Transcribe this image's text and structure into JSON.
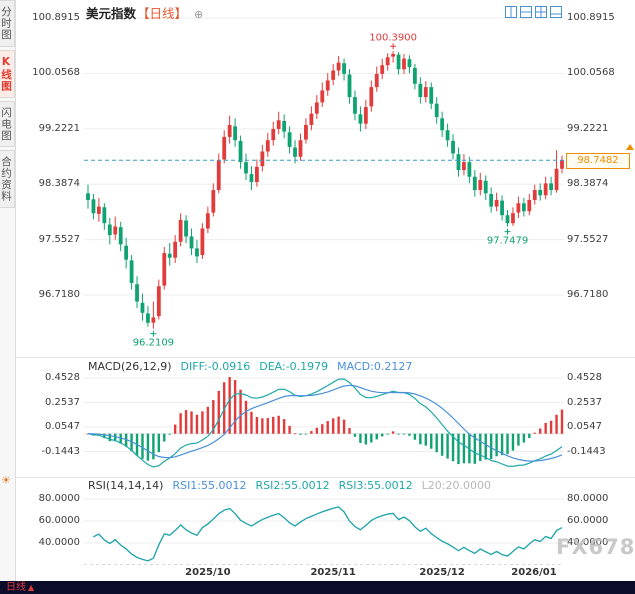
{
  "sidebar": {
    "tabs": [
      {
        "label": "分时图",
        "active": false
      },
      {
        "label": "K线图",
        "active": true
      },
      {
        "label": "闪电图",
        "active": false
      },
      {
        "label": "合约资料",
        "active": false
      }
    ],
    "settings_icon": "☀"
  },
  "header": {
    "title": "美元指数",
    "period_tag": "【日线】",
    "plus_icon": "⊕",
    "layout_icons": [
      "layout-2col-icon",
      "layout-2row-icon",
      "layout-4grid-icon",
      "layout-main-sub-icon"
    ]
  },
  "main_chart": {
    "y_axis_labels": [
      "100.8915",
      "100.0568",
      "99.2221",
      "98.3874",
      "97.5527",
      "96.7180"
    ],
    "current_price": "98.7482"
  },
  "macd": {
    "header": {
      "name": "MACD(26,12,9)",
      "diff": "DIFF:-0.0916",
      "dea": "DEA:-0.1979",
      "macd": "MACD:0.2127"
    },
    "y_axis_labels": [
      "0.4528",
      "0.2537",
      "0.0547",
      "-0.1443"
    ]
  },
  "rsi": {
    "header": {
      "name": "RSI(14,14,14)",
      "rsi1": "RSI1:55.0012",
      "rsi2": "RSI2:55.0012",
      "rsi3": "RSI3:55.0012",
      "l20": "L20:20.0000"
    },
    "y_axis_labels": [
      "80.0000",
      "60.0000",
      "40.0000"
    ]
  },
  "x_axis": {
    "month_labels": [
      {
        "label": "2025/10",
        "index": 22
      },
      {
        "label": "2025/11",
        "index": 45
      },
      {
        "label": "2025/12",
        "index": 65
      },
      {
        "label": "2026/01",
        "index": 87
      }
    ]
  },
  "footer": {
    "period_label": "日线",
    "arrow": "▲"
  },
  "watermark": "FX678",
  "colors": {
    "up": "#e23b3b",
    "down": "#0ea371",
    "accent_orange": "#f08c00",
    "teal": "#1fa8a8",
    "blue": "#4a90d9",
    "price_line": "#3a9bce",
    "grid": "#ededed",
    "period_orange": "#e5552c",
    "bottom_bar": "#0b0b2a",
    "watermark_gray": "#c0c0c0"
  },
  "chart_data": {
    "type": "candlestick",
    "symbol": "美元指数",
    "period": "日线",
    "ohlc_format": [
      "date",
      "open",
      "high",
      "low",
      "close"
    ],
    "current_price": 98.7482,
    "ylim": [
      96.0,
      101.15
    ],
    "y_gridlines": [
      100.8915,
      100.0568,
      99.2221,
      98.3874,
      97.5527,
      96.718
    ],
    "annotations": [
      {
        "type": "high",
        "index": 56,
        "text": "100.3900"
      },
      {
        "type": "low",
        "index": 12,
        "text": "96.2109"
      },
      {
        "type": "low",
        "index": 77,
        "text": "97.7479"
      }
    ],
    "indicators": {
      "macd": {
        "params": [
          26,
          12,
          9
        ],
        "diff": -0.0916,
        "dea": -0.1979,
        "macd": 0.2127,
        "y_gridlines": [
          0.4528,
          0.2537,
          0.0547,
          -0.1443
        ]
      },
      "rsi": {
        "params": [
          14,
          14,
          14
        ],
        "rsi1": 55.0012,
        "rsi2": 55.0012,
        "rsi3": 55.0012,
        "l20": 20.0,
        "y_gridlines": [
          80,
          60,
          40
        ]
      }
    },
    "candles": [
      [
        "2025-09-01",
        98.25,
        98.38,
        98.02,
        98.15
      ],
      [
        "2025-09-02",
        98.16,
        98.24,
        97.86,
        97.95
      ],
      [
        "2025-09-03",
        97.94,
        98.18,
        97.82,
        98.05
      ],
      [
        "2025-09-04",
        98.04,
        98.1,
        97.7,
        97.8
      ],
      [
        "2025-09-05",
        97.78,
        97.88,
        97.48,
        97.62
      ],
      [
        "2025-09-08",
        97.63,
        97.9,
        97.55,
        97.75
      ],
      [
        "2025-09-09",
        97.74,
        97.82,
        97.38,
        97.48
      ],
      [
        "2025-09-10",
        97.46,
        97.58,
        97.12,
        97.25
      ],
      [
        "2025-09-11",
        97.24,
        97.32,
        96.8,
        96.9
      ],
      [
        "2025-09-12",
        96.88,
        97.0,
        96.52,
        96.62
      ],
      [
        "2025-09-15",
        96.6,
        96.74,
        96.33,
        96.45
      ],
      [
        "2025-09-16",
        96.44,
        96.55,
        96.24,
        96.3
      ],
      [
        "2025-09-17",
        96.3,
        96.62,
        96.2109,
        96.38
      ],
      [
        "2025-09-18",
        96.4,
        96.95,
        96.35,
        96.85
      ],
      [
        "2025-09-19",
        96.86,
        97.44,
        96.8,
        97.35
      ],
      [
        "2025-09-22",
        97.34,
        97.5,
        97.16,
        97.28
      ],
      [
        "2025-09-23",
        97.28,
        97.62,
        97.2,
        97.52
      ],
      [
        "2025-09-24",
        97.52,
        97.95,
        97.45,
        97.85
      ],
      [
        "2025-09-25",
        97.84,
        97.92,
        97.5,
        97.6
      ],
      [
        "2025-09-26",
        97.6,
        97.72,
        97.32,
        97.42
      ],
      [
        "2025-09-29",
        97.42,
        97.55,
        97.2,
        97.3
      ],
      [
        "2025-09-30",
        97.32,
        97.8,
        97.26,
        97.72
      ],
      [
        "2025-10-01",
        97.72,
        98.05,
        97.65,
        97.95
      ],
      [
        "2025-10-02",
        97.96,
        98.4,
        97.9,
        98.3
      ],
      [
        "2025-10-03",
        98.3,
        98.85,
        98.25,
        98.75
      ],
      [
        "2025-10-06",
        98.76,
        99.2,
        98.7,
        99.1
      ],
      [
        "2025-10-07",
        99.1,
        99.42,
        99.0,
        99.28
      ],
      [
        "2025-10-08",
        99.26,
        99.38,
        98.95,
        99.05
      ],
      [
        "2025-10-09",
        99.04,
        99.12,
        98.62,
        98.72
      ],
      [
        "2025-10-10",
        98.72,
        98.85,
        98.45,
        98.55
      ],
      [
        "2025-10-13",
        98.54,
        98.66,
        98.3,
        98.42
      ],
      [
        "2025-10-14",
        98.42,
        98.76,
        98.35,
        98.65
      ],
      [
        "2025-10-15",
        98.66,
        98.98,
        98.58,
        98.88
      ],
      [
        "2025-10-16",
        98.88,
        99.16,
        98.8,
        99.05
      ],
      [
        "2025-10-17",
        99.05,
        99.33,
        98.97,
        99.22
      ],
      [
        "2025-10-20",
        99.22,
        99.48,
        99.14,
        99.35
      ],
      [
        "2025-10-21",
        99.34,
        99.44,
        99.08,
        99.18
      ],
      [
        "2025-10-22",
        99.17,
        99.26,
        98.85,
        98.95
      ],
      [
        "2025-10-23",
        98.94,
        99.05,
        98.7,
        98.8
      ],
      [
        "2025-10-24",
        98.8,
        99.15,
        98.74,
        99.05
      ],
      [
        "2025-10-27",
        99.06,
        99.38,
        99.0,
        99.28
      ],
      [
        "2025-10-28",
        99.28,
        99.56,
        99.2,
        99.45
      ],
      [
        "2025-10-29",
        99.45,
        99.73,
        99.37,
        99.62
      ],
      [
        "2025-10-30",
        99.62,
        99.92,
        99.55,
        99.8
      ],
      [
        "2025-10-31",
        99.8,
        100.06,
        99.72,
        99.95
      ],
      [
        "2025-11-03",
        99.96,
        100.2,
        99.88,
        100.1
      ],
      [
        "2025-11-04",
        100.1,
        100.32,
        100.02,
        100.22
      ],
      [
        "2025-11-05",
        100.21,
        100.28,
        99.95,
        100.05
      ],
      [
        "2025-11-06",
        100.04,
        100.12,
        99.6,
        99.7
      ],
      [
        "2025-11-07",
        99.7,
        99.8,
        99.35,
        99.45
      ],
      [
        "2025-11-10",
        99.44,
        99.56,
        99.18,
        99.3
      ],
      [
        "2025-11-11",
        99.3,
        99.66,
        99.22,
        99.55
      ],
      [
        "2025-11-12",
        99.56,
        99.95,
        99.48,
        99.85
      ],
      [
        "2025-11-13",
        99.85,
        100.16,
        99.78,
        100.05
      ],
      [
        "2025-11-14",
        100.05,
        100.28,
        99.97,
        100.18
      ],
      [
        "2025-11-17",
        100.18,
        100.36,
        100.1,
        100.3
      ],
      [
        "2025-11-18",
        100.31,
        100.39,
        100.22,
        100.35
      ],
      [
        "2025-11-19",
        100.34,
        100.38,
        100.04,
        100.12
      ],
      [
        "2025-11-20",
        100.12,
        100.35,
        100.05,
        100.28
      ],
      [
        "2025-11-21",
        100.27,
        100.33,
        100.06,
        100.15
      ],
      [
        "2025-11-24",
        100.14,
        100.2,
        99.82,
        99.9
      ],
      [
        "2025-11-25",
        99.9,
        100.0,
        99.6,
        99.7
      ],
      [
        "2025-11-26",
        99.7,
        99.94,
        99.62,
        99.85
      ],
      [
        "2025-11-27",
        99.85,
        99.92,
        99.52,
        99.6
      ],
      [
        "2025-11-28",
        99.6,
        99.7,
        99.3,
        99.4
      ],
      [
        "2025-12-01",
        99.38,
        99.48,
        99.1,
        99.2
      ],
      [
        "2025-12-02",
        99.2,
        99.3,
        98.95,
        99.05
      ],
      [
        "2025-12-03",
        99.04,
        99.14,
        98.76,
        98.85
      ],
      [
        "2025-12-04",
        98.84,
        98.94,
        98.5,
        98.6
      ],
      [
        "2025-12-05",
        98.6,
        98.84,
        98.52,
        98.72
      ],
      [
        "2025-12-08",
        98.72,
        98.8,
        98.4,
        98.5
      ],
      [
        "2025-12-09",
        98.5,
        98.6,
        98.2,
        98.3
      ],
      [
        "2025-12-10",
        98.3,
        98.56,
        98.22,
        98.45
      ],
      [
        "2025-12-11",
        98.44,
        98.52,
        98.15,
        98.25
      ],
      [
        "2025-12-12",
        98.24,
        98.34,
        97.96,
        98.05
      ],
      [
        "2025-12-15",
        98.05,
        98.26,
        97.98,
        98.15
      ],
      [
        "2025-12-16",
        98.14,
        98.22,
        97.84,
        97.92
      ],
      [
        "2025-12-17",
        97.92,
        98.0,
        97.7479,
        97.8
      ],
      [
        "2025-12-18",
        97.8,
        98.04,
        97.76,
        97.95
      ],
      [
        "2025-12-19",
        97.96,
        98.2,
        97.88,
        98.1
      ],
      [
        "2025-12-22",
        98.1,
        98.18,
        97.9,
        97.98
      ],
      [
        "2025-12-23",
        97.98,
        98.24,
        97.92,
        98.15
      ],
      [
        "2025-12-24",
        98.15,
        98.38,
        98.08,
        98.3
      ],
      [
        "2025-12-26",
        98.3,
        98.4,
        98.14,
        98.22
      ],
      [
        "2025-12-29",
        98.22,
        98.5,
        98.16,
        98.4
      ],
      [
        "2025-12-30",
        98.4,
        98.5,
        98.22,
        98.3
      ],
      [
        "2025-12-31",
        98.3,
        98.9,
        98.26,
        98.62
      ],
      [
        "2026-01-02",
        98.62,
        98.82,
        98.55,
        98.7482
      ]
    ]
  }
}
